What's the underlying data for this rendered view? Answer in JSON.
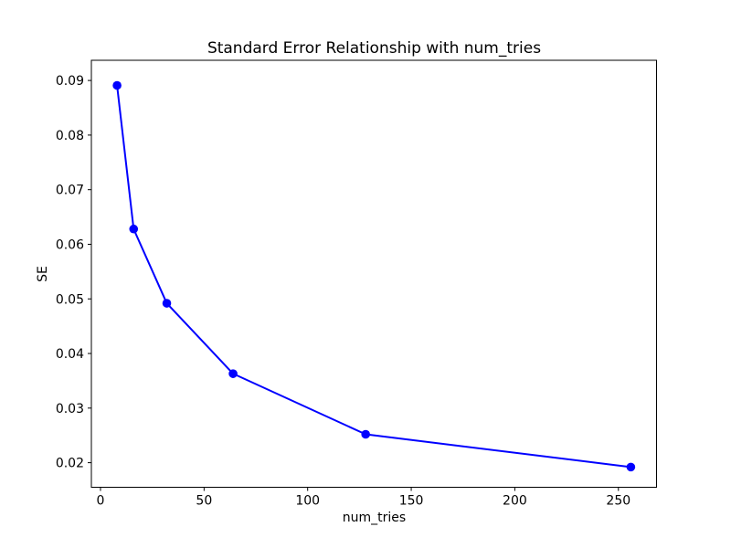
{
  "figure": {
    "background": "#ffffff"
  },
  "chart_data": {
    "type": "line",
    "title": "Standard Error Relationship with num_tries",
    "xlabel": "num_tries",
    "ylabel": "SE",
    "x": [
      8,
      16,
      32,
      64,
      128,
      256
    ],
    "y": [
      0.0891,
      0.0628,
      0.0492,
      0.0363,
      0.0252,
      0.0192
    ],
    "line_color": "#0000ff",
    "marker": "circle",
    "marker_color": "#0000ff",
    "xlim": [
      -4.4,
      268.4
    ],
    "ylim": [
      0.0155,
      0.0937
    ],
    "xticks": {
      "values": [
        0,
        50,
        100,
        150,
        200,
        250
      ],
      "labels": [
        "0",
        "50",
        "100",
        "150",
        "200",
        "250"
      ]
    },
    "yticks": {
      "values": [
        0.02,
        0.03,
        0.04,
        0.05,
        0.06,
        0.07,
        0.08,
        0.09
      ],
      "labels": [
        "0.02",
        "0.03",
        "0.04",
        "0.05",
        "0.06",
        "0.07",
        "0.08",
        "0.09"
      ]
    },
    "grid": false,
    "legend": "none"
  }
}
